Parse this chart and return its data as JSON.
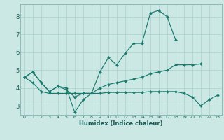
{
  "xlabel": "Humidex (Indice chaleur)",
  "x": [
    0,
    1,
    2,
    3,
    4,
    5,
    6,
    7,
    8,
    9,
    10,
    11,
    12,
    13,
    14,
    15,
    16,
    17,
    18,
    19,
    20,
    21,
    22,
    23
  ],
  "line1": [
    4.6,
    4.9,
    4.3,
    3.8,
    4.1,
    4.0,
    2.65,
    3.35,
    3.7,
    4.9,
    5.7,
    5.3,
    5.95,
    6.5,
    6.5,
    8.2,
    8.35,
    8.0,
    6.7,
    null,
    null,
    null,
    null,
    null
  ],
  "line2": [
    4.6,
    4.9,
    4.3,
    3.8,
    4.1,
    3.9,
    3.5,
    3.7,
    3.7,
    4.0,
    4.2,
    4.3,
    4.4,
    4.5,
    4.6,
    4.8,
    4.9,
    5.0,
    5.3,
    5.3,
    5.3,
    5.35,
    null,
    null
  ],
  "line3": [
    4.6,
    4.3,
    3.8,
    3.7,
    3.7,
    3.7,
    3.7,
    3.7,
    3.7,
    3.7,
    3.75,
    3.75,
    3.75,
    3.75,
    3.75,
    3.8,
    3.8,
    3.8,
    3.8,
    3.7,
    3.5,
    3.0,
    3.35,
    3.6
  ],
  "line_color": "#1a7a6e",
  "bg_color": "#cce8e4",
  "grid_color": "#aad0cc",
  "ylim": [
    2.5,
    8.7
  ],
  "xlim": [
    -0.5,
    23.5
  ],
  "yticks": [
    3,
    4,
    5,
    6,
    7,
    8
  ],
  "xticks": [
    0,
    1,
    2,
    3,
    4,
    5,
    6,
    7,
    8,
    9,
    10,
    11,
    12,
    13,
    14,
    15,
    16,
    17,
    18,
    19,
    20,
    21,
    22,
    23
  ],
  "xlabel_fontsize": 6.0,
  "xtick_fontsize": 4.5,
  "ytick_fontsize": 6.0,
  "linewidth": 0.85,
  "markersize": 2.0
}
